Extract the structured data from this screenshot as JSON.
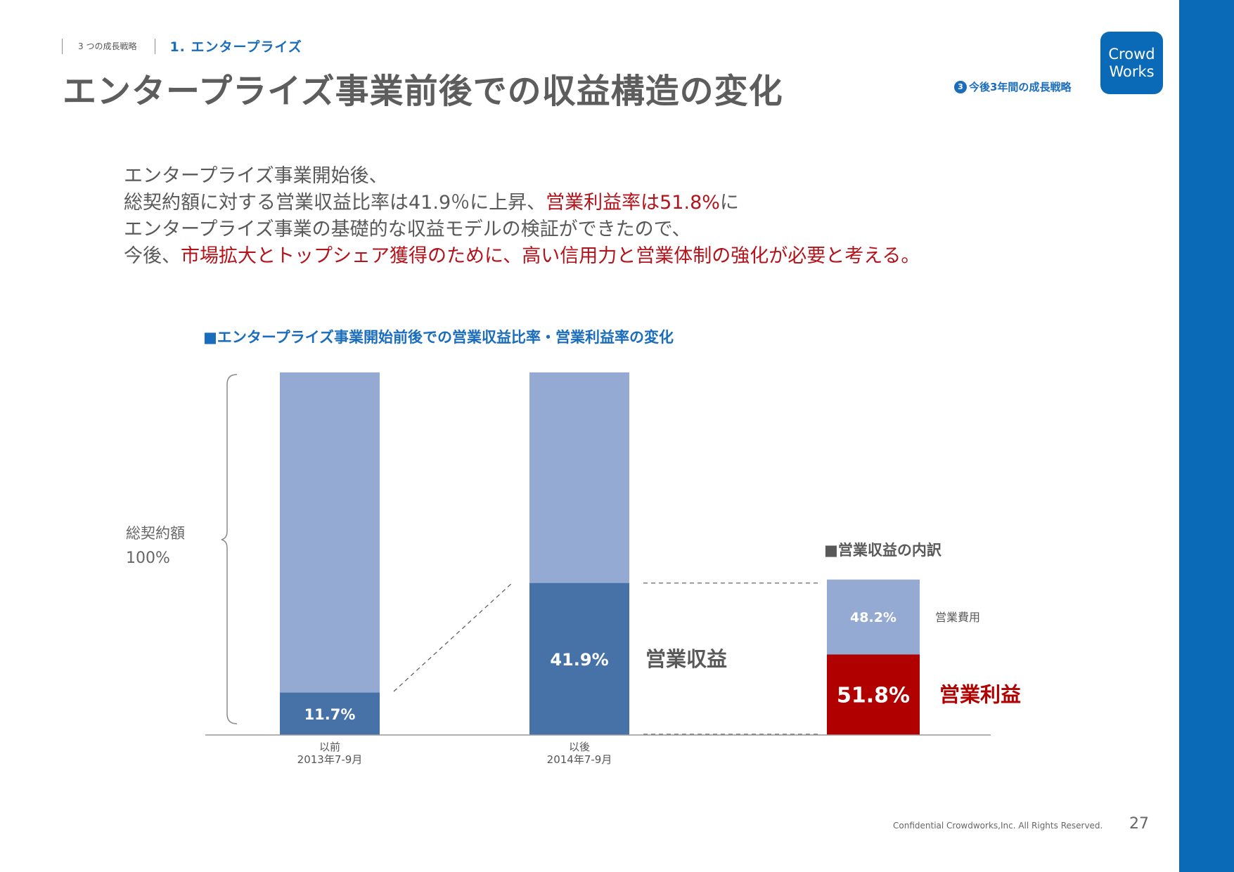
{
  "header": {
    "crumb_section": "3 つの成長戦略",
    "crumb_current": "1. エンタープライズ",
    "title": "エンタープライズ事業前後での収益構造の変化",
    "section_number": "3",
    "section_label": "今後3年間の成長戦略",
    "logo_line1": "Crowd",
    "logo_line2": "Works"
  },
  "intro": {
    "line1": "エンタープライズ事業開始後、",
    "line2_a": "総契約額に対する営業収益比率は41.9％に上昇、",
    "line2_b": "営業利益率は51.8%",
    "line2_c": "に",
    "line3": "エンタープライズ事業の基礎的な収益モデルの検証ができたので、",
    "line4_a": "今後、",
    "line4_b": "市場拡大とトップシェア獲得のために、高い信用力と営業体制の強化が必要と考える。"
  },
  "colors": {
    "accent_blue": "#0a6ab8",
    "light_bar": "#95aad3",
    "dark_bar": "#4672a8",
    "profit_red": "#b00000"
  },
  "chart_data": {
    "type": "bar",
    "title": "■エンタープライズ事業開始前後での営業収益比率・営業利益率の変化",
    "ylabel": "総契約額",
    "ylabel_value": "100%",
    "ylim": [
      0,
      100
    ],
    "categories": [
      {
        "line1": "以前",
        "line2": "2013年7-9月"
      },
      {
        "line1": "以後",
        "line2": "2014年7-9月"
      }
    ],
    "revenue_ratio": [
      11.7,
      41.9
    ],
    "revenue_labels": [
      "11.7%",
      "41.9%"
    ],
    "revenue_series_label": "営業収益",
    "breakdown": {
      "title": "■営業収益の内訳",
      "expense": 48.2,
      "expense_label": "48.2%",
      "expense_name": "営業費用",
      "profit": 51.8,
      "profit_label": "51.8%",
      "profit_name": "営業利益"
    }
  },
  "footer": {
    "copyright": "Confidential Crowdworks,Inc. All Rights Reserved.",
    "page": "27"
  }
}
